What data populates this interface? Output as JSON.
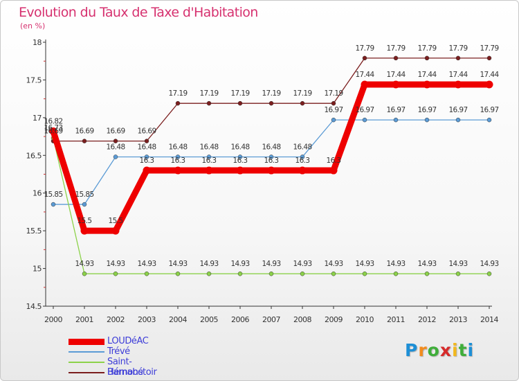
{
  "chart_data": {
    "type": "line",
    "title": "Evolution du Taux de Taxe d'Habitation",
    "subtitle": "(en %)",
    "x": [
      "2000",
      "2001",
      "2002",
      "2003",
      "2004",
      "2005",
      "2006",
      "2007",
      "2008",
      "2009",
      "2010",
      "2011",
      "2012",
      "2013",
      "2014"
    ],
    "ylim": [
      14.5,
      18
    ],
    "yticks": [
      "14.5",
      "15",
      "15.5",
      "16",
      "16.5",
      "17",
      "17.5",
      "18"
    ],
    "grid": false,
    "legend_position": "bottom-left",
    "series": [
      {
        "name": "LOUDéAC",
        "color": "#ee0000",
        "values": [
          16.82,
          15.5,
          15.5,
          16.3,
          16.3,
          16.3,
          16.3,
          16.3,
          16.3,
          16.3,
          17.44,
          17.44,
          17.44,
          17.44,
          17.44
        ],
        "labels": [
          "16.82",
          "15.5",
          "15.5",
          "16.3",
          "16.3",
          "16.3",
          "16.3",
          "16.3",
          "16.3",
          "16.3",
          "17.44",
          "17.44",
          "17.44",
          "17.44",
          "17.44"
        ]
      },
      {
        "name": "Trévé",
        "color": "#5b9bd5",
        "values": [
          15.85,
          15.85,
          16.48,
          16.48,
          16.48,
          16.48,
          16.48,
          16.48,
          16.48,
          16.97,
          16.97,
          16.97,
          16.97,
          16.97,
          16.97
        ],
        "labels": [
          "15.85",
          "15.85",
          "16.48",
          "16.48",
          "16.48",
          "16.48",
          "16.48",
          "16.48",
          "16.48",
          "16.97",
          "16.97",
          "16.97",
          "16.97",
          "16.97",
          "16.97"
        ]
      },
      {
        "name": "Saint-Barnabé",
        "color": "#8cd24a",
        "values": [
          16.73,
          14.93,
          14.93,
          14.93,
          14.93,
          14.93,
          14.93,
          14.93,
          14.93,
          14.93,
          14.93,
          14.93,
          14.93,
          14.93,
          14.93
        ],
        "labels": [
          "16.73",
          "14.93",
          "14.93",
          "14.93",
          "14.93",
          "14.93",
          "14.93",
          "14.93",
          "14.93",
          "14.93",
          "14.93",
          "14.93",
          "14.93",
          "14.93",
          "14.93"
        ]
      },
      {
        "name": "Hémonstoir",
        "color": "#7b1e1e",
        "values": [
          16.69,
          16.69,
          16.69,
          16.69,
          17.19,
          17.19,
          17.19,
          17.19,
          17.19,
          17.19,
          17.79,
          17.79,
          17.79,
          17.79,
          17.79
        ],
        "labels": [
          "16.69",
          "16.69",
          "16.69",
          "16.69",
          "17.19",
          "17.19",
          "17.19",
          "17.19",
          "17.19",
          "17.19",
          "17.79",
          "17.79",
          "17.79",
          "17.79",
          "17.79"
        ]
      }
    ]
  },
  "logo": {
    "letters": [
      "P",
      "r",
      "o",
      "x",
      "i",
      "t",
      "i"
    ],
    "colors": [
      "#1d8fd6",
      "#f28c1e",
      "#3fae3a",
      "#d62a2a",
      "#f2b81e",
      "#3fae3a",
      "#1d8fd6"
    ]
  }
}
